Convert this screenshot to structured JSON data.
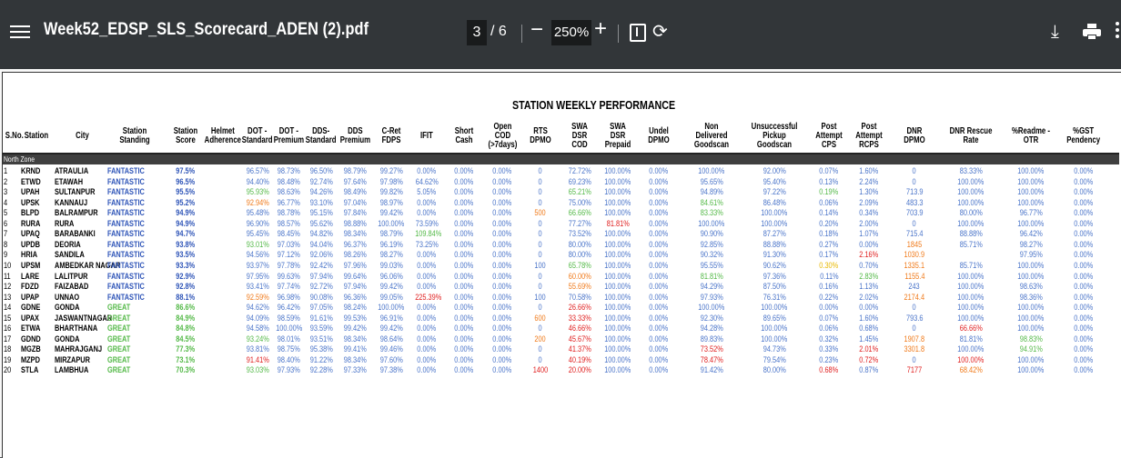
{
  "toolbar": {
    "title": "Week52_EDSP_SLS_Scorecard_ADEN (2).pdf",
    "page_current": "3",
    "page_total": "/ 6",
    "zoom": "250%",
    "minus": "−",
    "plus": "+",
    "rotate_glyph": "⟳",
    "download_glyph": "⤓"
  },
  "report": {
    "title": "STATION WEEKLY PERFORMANCE",
    "zone": "North Zone"
  },
  "headers": [
    "S.No.",
    "Station",
    "City",
    "Station Standing",
    "Station\nScore",
    "Helmet\nAdherence",
    "DOT -\nStandard",
    "DOT -\nPremium",
    "DDS-\nStandard",
    "DDS\nPremium",
    "C-Ret FDPS",
    "IFIT",
    "Short Cash",
    "Open COD\n(>7days)",
    "RTS DPMO",
    "SWA DSR\nCOD",
    "SWA DSR\nPrepaid",
    "Undel DPMO",
    "Non Delivered\nGoodscan",
    "Unsuccessful\nPickup Goodscan",
    "Post Attempt\nCPS",
    "Post Attempt\nRCPS",
    "DNR DPMO",
    "DNR Rescue Rate",
    "%Readme - OTR",
    "%GST\nPendency"
  ],
  "rows": [
    [
      "1",
      "KRND",
      "ATRAULIA",
      "FANTASTIC",
      "97.5%",
      "",
      "96.57%",
      "98.73%",
      "96.50%",
      "98.79%",
      "99.27%",
      "0.00%",
      "0.00%",
      "0.00%",
      "0",
      "72.72%",
      "100.00%",
      "0.00%",
      "100.00%",
      "92.00%",
      "0.07%",
      "1.60%",
      "0",
      "83.33%",
      "100.00%",
      "0.00%"
    ],
    [
      "2",
      "ETWD",
      "ETAWAH",
      "FANTASTIC",
      "96.5%",
      "",
      "94.40%",
      "98.48%",
      "92.74%",
      "97.64%",
      "97.98%",
      "64.62%",
      "0.00%",
      "0.00%",
      "0",
      "69.23%",
      "100.00%",
      "0.00%",
      "95.65%",
      "95.40%",
      "0.13%",
      "2.24%",
      "0",
      "100.00%",
      "100.00%",
      "0.00%"
    ],
    [
      "3",
      "UPAH",
      "SULTANPUR",
      "FANTASTIC",
      "95.5%",
      "",
      "95.93%",
      "98.63%",
      "94.26%",
      "98.49%",
      "99.82%",
      "5.05%",
      "0.00%",
      "0.00%",
      "0",
      "65.21%",
      "100.00%",
      "0.00%",
      "94.89%",
      "97.22%",
      "0.19%",
      "1.30%",
      "713.9",
      "100.00%",
      "100.00%",
      "0.00%"
    ],
    [
      "4",
      "UPSK",
      "KANNAUJ",
      "FANTASTIC",
      "95.2%",
      "",
      "92.94%",
      "96.77%",
      "93.10%",
      "97.04%",
      "98.97%",
      "0.00%",
      "0.00%",
      "0.00%",
      "0",
      "75.00%",
      "100.00%",
      "0.00%",
      "84.61%",
      "86.48%",
      "0.06%",
      "2.09%",
      "483.3",
      "100.00%",
      "100.00%",
      "0.00%"
    ],
    [
      "5",
      "BLPD",
      "BALRAMPUR",
      "FANTASTIC",
      "94.9%",
      "",
      "95.48%",
      "98.78%",
      "95.15%",
      "97.84%",
      "99.42%",
      "0.00%",
      "0.00%",
      "0.00%",
      "500",
      "66.66%",
      "100.00%",
      "0.00%",
      "83.33%",
      "100.00%",
      "0.14%",
      "0.34%",
      "703.9",
      "80.00%",
      "96.77%",
      "0.00%"
    ],
    [
      "6",
      "RURA",
      "RURA",
      "FANTASTIC",
      "94.9%",
      "",
      "96.90%",
      "98.57%",
      "95.62%",
      "98.88%",
      "100.00%",
      "73.59%",
      "0.00%",
      "0.00%",
      "0",
      "77.27%",
      "81.81%",
      "0.00%",
      "100.00%",
      "100.00%",
      "0.20%",
      "2.00%",
      "0",
      "100.00%",
      "100.00%",
      "0.00%"
    ],
    [
      "7",
      "UPAQ",
      "BARABANKI",
      "FANTASTIC",
      "94.7%",
      "",
      "95.45%",
      "98.45%",
      "94.82%",
      "98.34%",
      "98.79%",
      "109.84%",
      "0.00%",
      "0.00%",
      "0",
      "73.52%",
      "100.00%",
      "0.00%",
      "90.90%",
      "87.27%",
      "0.18%",
      "1.07%",
      "715.4",
      "88.88%",
      "96.42%",
      "0.00%"
    ],
    [
      "8",
      "UPDB",
      "DEORIA",
      "FANTASTIC",
      "93.8%",
      "",
      "93.01%",
      "97.03%",
      "94.04%",
      "96.37%",
      "96.19%",
      "73.25%",
      "0.00%",
      "0.00%",
      "0",
      "80.00%",
      "100.00%",
      "0.00%",
      "92.85%",
      "88.88%",
      "0.27%",
      "0.00%",
      "1845",
      "85.71%",
      "98.27%",
      "0.00%"
    ],
    [
      "9",
      "HRIA",
      "SANDILA",
      "FANTASTIC",
      "93.5%",
      "",
      "94.56%",
      "97.12%",
      "92.06%",
      "98.26%",
      "98.27%",
      "0.00%",
      "0.00%",
      "0.00%",
      "0",
      "80.00%",
      "100.00%",
      "0.00%",
      "90.32%",
      "91.30%",
      "0.17%",
      "2.16%",
      "1030.9",
      "",
      "97.95%",
      "0.00%"
    ],
    [
      "10",
      "UPSM",
      "AMBEDKAR NAGAR",
      "FANTASTIC",
      "93.3%",
      "",
      "93.97%",
      "97.78%",
      "92.42%",
      "97.96%",
      "99.03%",
      "0.00%",
      "0.00%",
      "0.00%",
      "100",
      "65.78%",
      "100.00%",
      "0.00%",
      "95.55%",
      "90.62%",
      "0.30%",
      "0.70%",
      "1335.1",
      "85.71%",
      "100.00%",
      "0.00%"
    ],
    [
      "11",
      "LARE",
      "LALITPUR",
      "FANTASTIC",
      "92.9%",
      "",
      "97.95%",
      "99.63%",
      "97.94%",
      "99.64%",
      "96.06%",
      "0.00%",
      "0.00%",
      "0.00%",
      "0",
      "60.00%",
      "100.00%",
      "0.00%",
      "81.81%",
      "97.36%",
      "0.11%",
      "2.83%",
      "1155.4",
      "100.00%",
      "100.00%",
      "0.00%"
    ],
    [
      "12",
      "FDZD",
      "FAIZABAD",
      "FANTASTIC",
      "92.8%",
      "",
      "93.41%",
      "97.74%",
      "92.72%",
      "97.94%",
      "99.42%",
      "0.00%",
      "0.00%",
      "0.00%",
      "0",
      "55.69%",
      "100.00%",
      "0.00%",
      "94.29%",
      "87.50%",
      "0.16%",
      "1.13%",
      "243",
      "100.00%",
      "98.63%",
      "0.00%"
    ],
    [
      "13",
      "UPAP",
      "UNNAO",
      "FANTASTIC",
      "88.1%",
      "",
      "92.59%",
      "96.98%",
      "90.08%",
      "96.36%",
      "99.05%",
      "225.39%",
      "0.00%",
      "0.00%",
      "100",
      "70.58%",
      "100.00%",
      "0.00%",
      "97.93%",
      "76.31%",
      "0.22%",
      "2.02%",
      "2174.4",
      "100.00%",
      "98.36%",
      "0.00%"
    ],
    [
      "14",
      "GDNE",
      "GONDA",
      "GREAT",
      "86.6%",
      "",
      "94.62%",
      "96.42%",
      "97.05%",
      "98.24%",
      "100.00%",
      "0.00%",
      "0.00%",
      "0.00%",
      "0",
      "26.66%",
      "100.00%",
      "0.00%",
      "100.00%",
      "100.00%",
      "0.00%",
      "0.00%",
      "0",
      "100.00%",
      "100.00%",
      "0.00%"
    ],
    [
      "15",
      "UPAX",
      "JASWANTNAGAR",
      "GREAT",
      "84.9%",
      "",
      "94.09%",
      "98.59%",
      "91.61%",
      "99.53%",
      "96.91%",
      "0.00%",
      "0.00%",
      "0.00%",
      "600",
      "33.33%",
      "100.00%",
      "0.00%",
      "92.30%",
      "89.65%",
      "0.07%",
      "1.60%",
      "793.6",
      "100.00%",
      "100.00%",
      "0.00%"
    ],
    [
      "16",
      "ETWA",
      "BHARTHANA",
      "GREAT",
      "84.8%",
      "",
      "94.58%",
      "100.00%",
      "93.59%",
      "99.42%",
      "99.42%",
      "0.00%",
      "0.00%",
      "0.00%",
      "0",
      "46.66%",
      "100.00%",
      "0.00%",
      "94.28%",
      "100.00%",
      "0.06%",
      "0.68%",
      "0",
      "66.66%",
      "100.00%",
      "0.00%"
    ],
    [
      "17",
      "GDND",
      "GONDA",
      "GREAT",
      "84.5%",
      "",
      "93.24%",
      "98.01%",
      "93.51%",
      "98.34%",
      "98.64%",
      "0.00%",
      "0.00%",
      "0.00%",
      "200",
      "45.67%",
      "100.00%",
      "0.00%",
      "89.83%",
      "100.00%",
      "0.32%",
      "1.45%",
      "1907.8",
      "81.81%",
      "98.83%",
      "0.00%"
    ],
    [
      "18",
      "MGZB",
      "MAHRAJGANJ",
      "GREAT",
      "77.3%",
      "",
      "93.81%",
      "98.75%",
      "95.38%",
      "99.41%",
      "99.46%",
      "0.00%",
      "0.00%",
      "0.00%",
      "0",
      "41.37%",
      "100.00%",
      "0.00%",
      "73.52%",
      "94.73%",
      "0.33%",
      "2.01%",
      "3301.8",
      "100.00%",
      "94.91%",
      "0.00%"
    ],
    [
      "19",
      "MZPD",
      "MIRZAPUR",
      "GREAT",
      "73.1%",
      "",
      "91.41%",
      "98.40%",
      "91.22%",
      "98.34%",
      "97.60%",
      "0.00%",
      "0.00%",
      "0.00%",
      "0",
      "40.19%",
      "100.00%",
      "0.00%",
      "78.47%",
      "79.54%",
      "0.23%",
      "0.72%",
      "0",
      "100.00%",
      "100.00%",
      "0.00%"
    ],
    [
      "20",
      "STLA",
      "LAMBHUA",
      "GREAT",
      "70.3%",
      "",
      "93.03%",
      "97.93%",
      "92.28%",
      "97.33%",
      "97.38%",
      "0.00%",
      "0.00%",
      "0.00%",
      "1400",
      "20.00%",
      "100.00%",
      "0.00%",
      "91.42%",
      "80.00%",
      "0.68%",
      "0.87%",
      "7177",
      "68.42%",
      "100.00%",
      "0.00%"
    ]
  ],
  "cell_colors": {
    "r": "#e02020",
    "g": "#54b948",
    "o": "#f07a1a",
    "y": "#e8b800"
  },
  "highlights": {
    "3": {
      "6": "g",
      "15": "g",
      "20": "g"
    },
    "4": {
      "6": "o",
      "18": "g"
    },
    "5": {
      "14": "o",
      "15": "g",
      "18": "g"
    },
    "6": {
      "16": "r"
    },
    "7": {
      "11": "g"
    },
    "8": {
      "6": "g",
      "22": "o"
    },
    "9": {
      "21": "r",
      "22": "o"
    },
    "10": {
      "15": "g",
      "20": "y",
      "22": "o"
    },
    "11": {
      "15": "o",
      "18": "g",
      "21": "g",
      "22": "o"
    },
    "12": {
      "15": "o"
    },
    "13": {
      "6": "o",
      "11": "r",
      "22": "o"
    },
    "14": {
      "15": "r"
    },
    "15": {
      "14": "o",
      "15": "r"
    },
    "16": {
      "15": "r",
      "23": "r"
    },
    "17": {
      "6": "g",
      "14": "o",
      "15": "r",
      "22": "o",
      "24": "g"
    },
    "18": {
      "15": "r",
      "18": "r",
      "21": "r",
      "22": "o",
      "24": "g"
    },
    "19": {
      "6": "r",
      "15": "r",
      "18": "r",
      "21": "r",
      "23": "r"
    },
    "20": {
      "6": "g",
      "14": "r",
      "15": "r",
      "20": "r",
      "22": "r",
      "23": "o"
    }
  }
}
